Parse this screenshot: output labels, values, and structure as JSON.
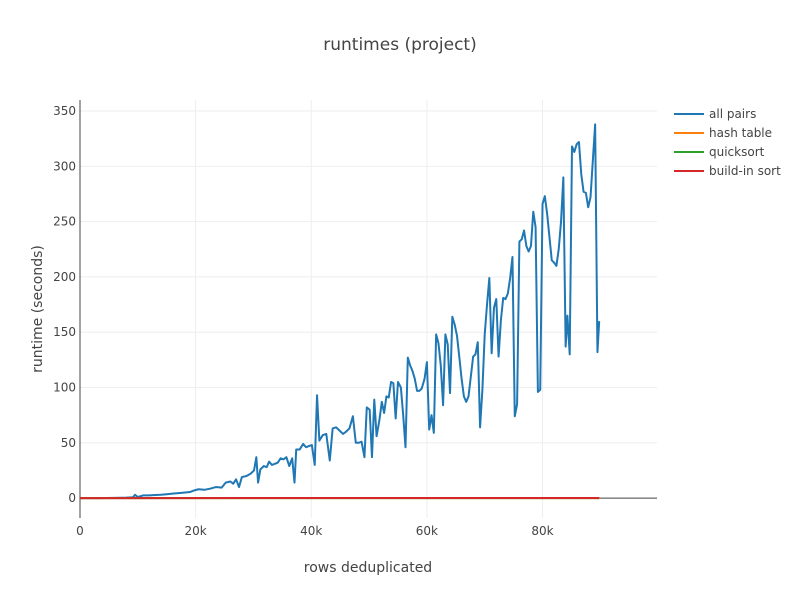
{
  "chart_data": {
    "type": "line",
    "title": "runtimes (project)",
    "xlabel": "rows deduplicated",
    "ylabel": "runtime (seconds)",
    "xlim": [
      0,
      99800
    ],
    "ylim": [
      -18,
      360
    ],
    "x_ticks": [
      0,
      20000,
      40000,
      60000,
      80000
    ],
    "x_tick_labels": [
      "0",
      "20k",
      "40k",
      "60k",
      "80k"
    ],
    "y_ticks": [
      0,
      50,
      100,
      150,
      200,
      250,
      300,
      350
    ],
    "y_tick_labels": [
      "0",
      "50",
      "100",
      "150",
      "200",
      "250",
      "300",
      "350"
    ],
    "grid": true,
    "legend": "top-right",
    "series": [
      {
        "name": "all pairs",
        "color": "#1f77b4",
        "points": [
          [
            0,
            0
          ],
          [
            3000,
            0
          ],
          [
            6000,
            0.2
          ],
          [
            8000,
            0.4
          ],
          [
            9200,
            0.8
          ],
          [
            9500,
            3
          ],
          [
            10000,
            1
          ],
          [
            11000,
            2.5
          ],
          [
            12000,
            2.5
          ],
          [
            13000,
            2.8
          ],
          [
            14000,
            3
          ],
          [
            15000,
            3.5
          ],
          [
            16000,
            4
          ],
          [
            17000,
            4.5
          ],
          [
            18000,
            5
          ],
          [
            19000,
            5.5
          ],
          [
            19800,
            7
          ],
          [
            20500,
            8
          ],
          [
            21500,
            7.5
          ],
          [
            22500,
            8.5
          ],
          [
            23500,
            10
          ],
          [
            24500,
            9.5
          ],
          [
            25200,
            14
          ],
          [
            26000,
            15
          ],
          [
            26500,
            13
          ],
          [
            27000,
            17
          ],
          [
            27500,
            10
          ],
          [
            28000,
            19
          ],
          [
            28800,
            20
          ],
          [
            29500,
            22
          ],
          [
            30100,
            25
          ],
          [
            30500,
            37
          ],
          [
            30800,
            14
          ],
          [
            31200,
            26
          ],
          [
            31800,
            29
          ],
          [
            32300,
            28
          ],
          [
            32700,
            33
          ],
          [
            33200,
            30
          ],
          [
            33700,
            31
          ],
          [
            34200,
            32
          ],
          [
            34700,
            36
          ],
          [
            35200,
            35
          ],
          [
            35700,
            37
          ],
          [
            36200,
            29
          ],
          [
            36700,
            36
          ],
          [
            37100,
            14
          ],
          [
            37400,
            44
          ],
          [
            38000,
            44
          ],
          [
            38600,
            49
          ],
          [
            39100,
            46
          ],
          [
            39600,
            47
          ],
          [
            40100,
            48
          ],
          [
            40600,
            30
          ],
          [
            41000,
            93
          ],
          [
            41400,
            52
          ],
          [
            42000,
            57
          ],
          [
            42600,
            58
          ],
          [
            43200,
            34
          ],
          [
            43700,
            63
          ],
          [
            44300,
            64
          ],
          [
            44900,
            61
          ],
          [
            45500,
            58
          ],
          [
            46000,
            60
          ],
          [
            46600,
            63
          ],
          [
            47200,
            74
          ],
          [
            47700,
            50
          ],
          [
            48200,
            50
          ],
          [
            48700,
            51
          ],
          [
            49200,
            37
          ],
          [
            49600,
            82
          ],
          [
            50100,
            80
          ],
          [
            50500,
            37
          ],
          [
            50900,
            89
          ],
          [
            51300,
            56
          ],
          [
            51800,
            71
          ],
          [
            52200,
            87
          ],
          [
            52600,
            77
          ],
          [
            53000,
            92
          ],
          [
            53400,
            91
          ],
          [
            53800,
            105
          ],
          [
            54200,
            104
          ],
          [
            54600,
            72
          ],
          [
            55000,
            105
          ],
          [
            55500,
            100
          ],
          [
            55900,
            75
          ],
          [
            56300,
            46
          ],
          [
            56700,
            127
          ],
          [
            57100,
            120
          ],
          [
            57500,
            115
          ],
          [
            57900,
            108
          ],
          [
            58300,
            97
          ],
          [
            58700,
            97
          ],
          [
            59100,
            99
          ],
          [
            59600,
            108
          ],
          [
            60000,
            123
          ],
          [
            60400,
            62
          ],
          [
            60800,
            75
          ],
          [
            61200,
            59
          ],
          [
            61600,
            148
          ],
          [
            62000,
            140
          ],
          [
            62400,
            120
          ],
          [
            62800,
            84
          ],
          [
            63200,
            148
          ],
          [
            63600,
            139
          ],
          [
            64000,
            95
          ],
          [
            64400,
            164
          ],
          [
            64800,
            157
          ],
          [
            65200,
            147
          ],
          [
            65600,
            128
          ],
          [
            66000,
            108
          ],
          [
            66400,
            92
          ],
          [
            66800,
            87
          ],
          [
            67200,
            92
          ],
          [
            67600,
            110
          ],
          [
            68000,
            128
          ],
          [
            68400,
            130
          ],
          [
            68800,
            141
          ],
          [
            69200,
            64
          ],
          [
            69600,
            98
          ],
          [
            70000,
            148
          ],
          [
            70400,
            175
          ],
          [
            70800,
            199
          ],
          [
            71200,
            131
          ],
          [
            71600,
            172
          ],
          [
            72000,
            180
          ],
          [
            72400,
            128
          ],
          [
            72800,
            161
          ],
          [
            73200,
            181
          ],
          [
            73600,
            180
          ],
          [
            74000,
            185
          ],
          [
            74400,
            199
          ],
          [
            74800,
            218
          ],
          [
            75200,
            74
          ],
          [
            75600,
            85
          ],
          [
            76000,
            232
          ],
          [
            76400,
            234
          ],
          [
            76800,
            242
          ],
          [
            77200,
            228
          ],
          [
            77600,
            223
          ],
          [
            78000,
            228
          ],
          [
            78400,
            259
          ],
          [
            78800,
            245
          ],
          [
            79200,
            96
          ],
          [
            79600,
            98
          ],
          [
            80000,
            266
          ],
          [
            80400,
            273
          ],
          [
            80800,
            257
          ],
          [
            81200,
            236
          ],
          [
            81600,
            215
          ],
          [
            82000,
            213
          ],
          [
            82400,
            210
          ],
          [
            82800,
            225
          ],
          [
            83200,
            250
          ],
          [
            83600,
            290
          ],
          [
            84000,
            137
          ],
          [
            84300,
            165
          ],
          [
            84700,
            130
          ],
          [
            85100,
            318
          ],
          [
            85500,
            313
          ],
          [
            85900,
            320
          ],
          [
            86300,
            322
          ],
          [
            86700,
            293
          ],
          [
            87100,
            277
          ],
          [
            87500,
            276
          ],
          [
            87900,
            263
          ],
          [
            88300,
            272
          ],
          [
            88700,
            305
          ],
          [
            89100,
            338
          ],
          [
            89500,
            132
          ],
          [
            89800,
            160
          ]
        ]
      },
      {
        "name": "hash table",
        "color": "#ff7f0e",
        "points": [
          [
            0,
            0
          ],
          [
            89800,
            0
          ]
        ]
      },
      {
        "name": "quicksort",
        "color": "#2ca02c",
        "points": [
          [
            0,
            0
          ],
          [
            89800,
            0
          ]
        ]
      },
      {
        "name": "build-in sort",
        "color": "#d62728",
        "points": [
          [
            0,
            0
          ],
          [
            89800,
            0.1
          ]
        ]
      }
    ]
  }
}
